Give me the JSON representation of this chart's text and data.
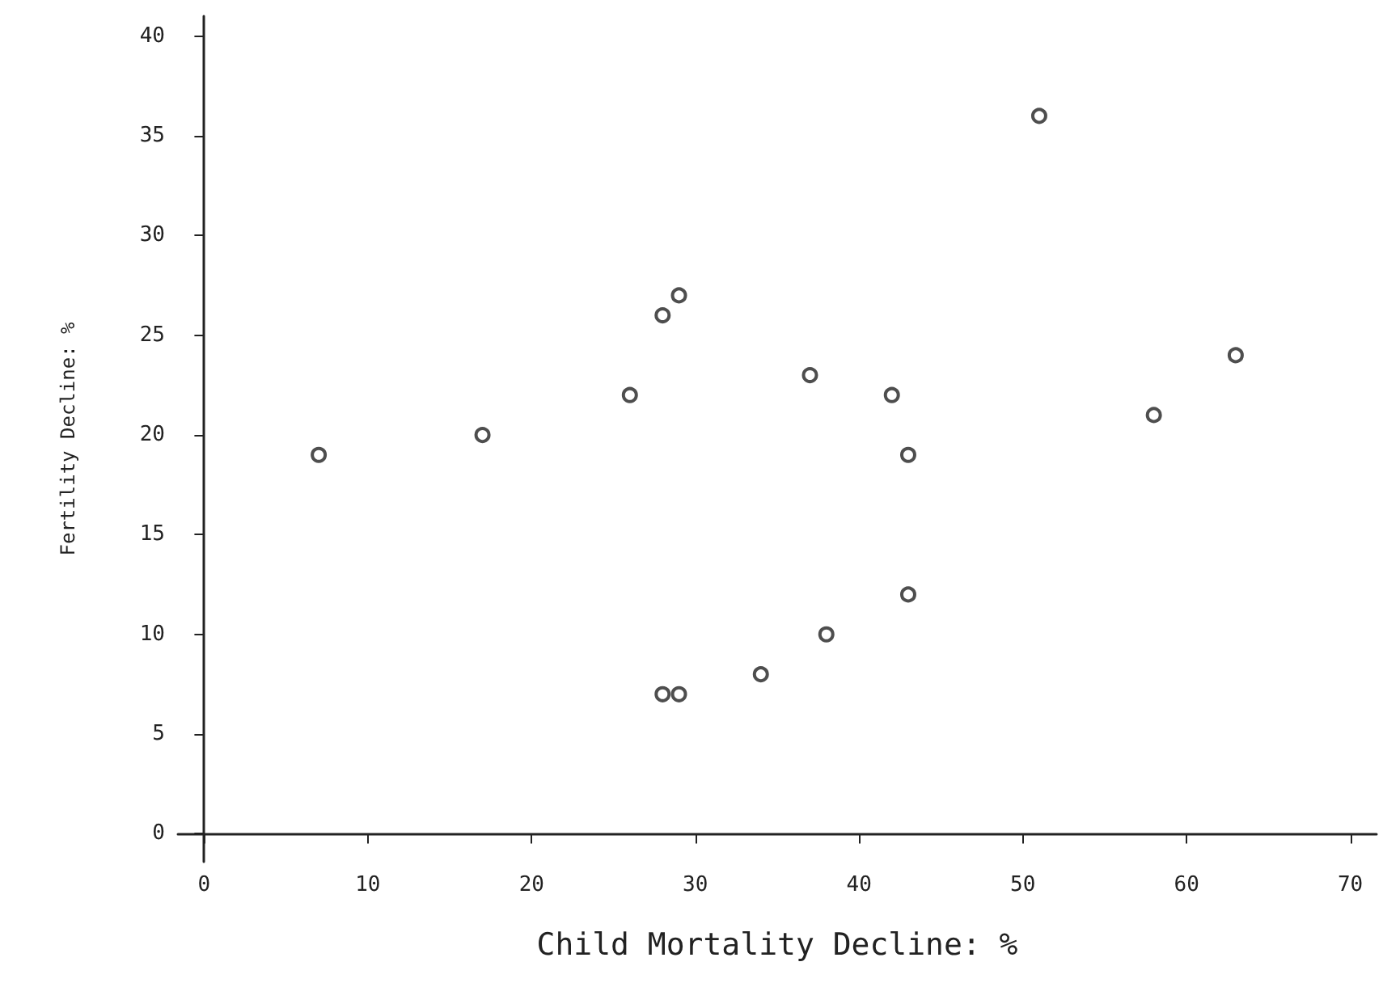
{
  "chart_data": {
    "type": "scatter",
    "xlabel": "Child Mortality Decline: %",
    "ylabel": "Fertility Decline: %",
    "x": [
      7,
      17,
      26,
      28,
      29,
      37,
      42,
      43,
      43,
      38,
      34,
      28,
      29,
      51,
      58,
      63
    ],
    "values": [
      19,
      20,
      22,
      26,
      27,
      23,
      22,
      19,
      12,
      10,
      8,
      7,
      7,
      36,
      21,
      24
    ],
    "color": "#222222",
    "marker": "circle",
    "grid": false,
    "xlim": [
      -1.6,
      71.6
    ],
    "ylim": [
      -1.4,
      41
    ],
    "xticks": [
      0,
      10,
      20,
      30,
      40,
      50,
      60,
      70
    ],
    "yticks": [
      0,
      5,
      10,
      15,
      20,
      25,
      30,
      35,
      40
    ]
  }
}
